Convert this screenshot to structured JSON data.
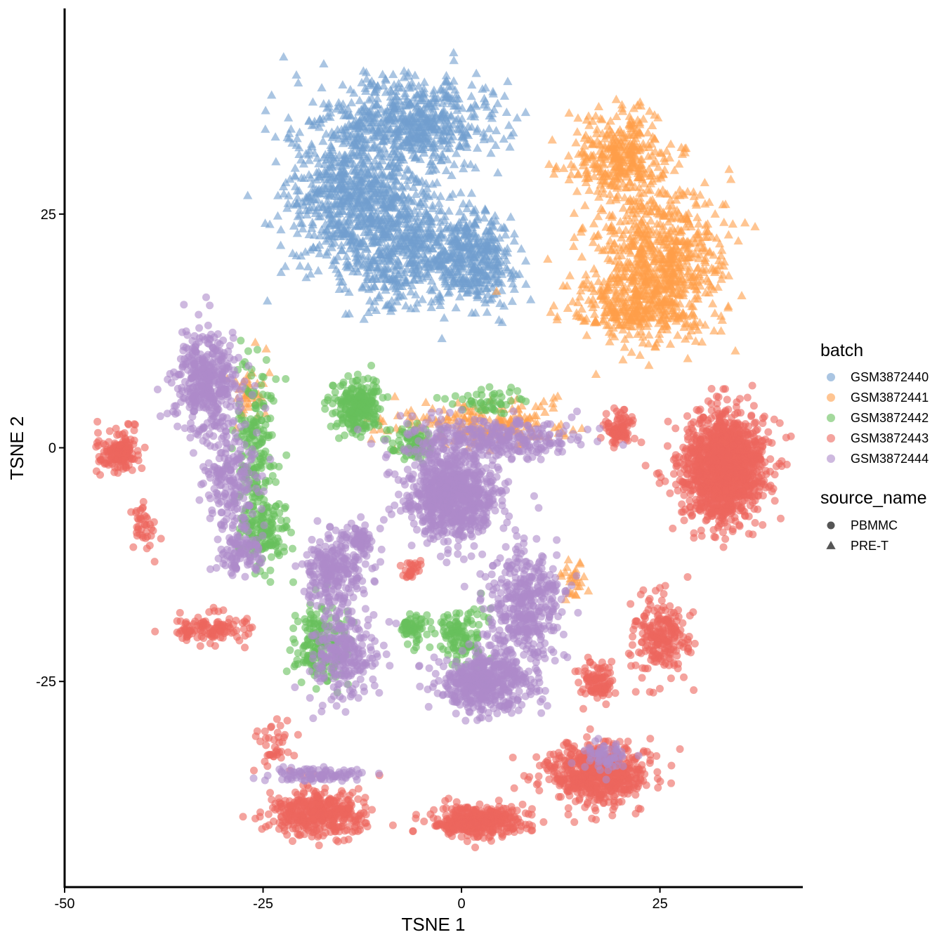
{
  "chart_data": {
    "type": "scatter",
    "title": "",
    "xlabel": "TSNE 1",
    "ylabel": "TSNE 2",
    "xlim": [
      -50,
      43
    ],
    "ylim": [
      -47,
      47
    ],
    "xticks": [
      -50,
      -25,
      0,
      25
    ],
    "xtick_labels": [
      "-50",
      "-25",
      "0",
      "25"
    ],
    "yticks": [
      -25,
      0,
      25
    ],
    "ytick_labels": [
      "-25",
      "0",
      "25"
    ],
    "grid": false,
    "legend_position": "right",
    "legends": {
      "batch": {
        "title": "batch",
        "entries": [
          {
            "label": "GSM3872440",
            "color": "#729ECE"
          },
          {
            "label": "GSM3872441",
            "color": "#FF9E4A"
          },
          {
            "label": "GSM3872442",
            "color": "#67BF5C"
          },
          {
            "label": "GSM3872443",
            "color": "#ED665D"
          },
          {
            "label": "GSM3872444",
            "color": "#AD8BC9"
          }
        ]
      },
      "source_name": {
        "title": "source_name",
        "entries": [
          {
            "label": "PBMMC",
            "shape": "circle"
          },
          {
            "label": "PRE-T",
            "shape": "triangle"
          }
        ]
      }
    },
    "series": [
      {
        "name": "GSM3872440",
        "shape": "triangle",
        "clusters": [
          {
            "cx": -13,
            "cy": 27,
            "sx": 6,
            "sy": 6,
            "n": 900
          },
          {
            "cx": -5,
            "cy": 35,
            "sx": 6,
            "sy": 3,
            "n": 500
          },
          {
            "cx": -5,
            "cy": 21,
            "sx": 6,
            "sy": 3.5,
            "n": 500
          },
          {
            "cx": 2,
            "cy": 20,
            "sx": 3,
            "sy": 3,
            "n": 250
          }
        ]
      },
      {
        "name": "GSM3872441",
        "shape": "triangle",
        "clusters": [
          {
            "cx": 25,
            "cy": 20,
            "sx": 5,
            "sy": 5,
            "n": 700
          },
          {
            "cx": 20,
            "cy": 31,
            "sx": 4,
            "sy": 3,
            "n": 350
          },
          {
            "cx": 21,
            "cy": 15,
            "sx": 5,
            "sy": 2,
            "n": 250
          },
          {
            "cx": 2,
            "cy": 2.5,
            "sx": 7,
            "sy": 1.5,
            "n": 200
          },
          {
            "cx": -27,
            "cy": 6,
            "sx": 1.5,
            "sy": 2,
            "n": 40
          },
          {
            "cx": 14,
            "cy": -14,
            "sx": 1,
            "sy": 1.5,
            "n": 30
          }
        ]
      },
      {
        "name": "GSM3872442",
        "shape": "circle",
        "clusters": [
          {
            "cx": -13,
            "cy": 4.5,
            "sx": 1.8,
            "sy": 1.8,
            "n": 250
          },
          {
            "cx": -26,
            "cy": 0,
            "sx": 1.5,
            "sy": 6,
            "n": 180
          },
          {
            "cx": -25,
            "cy": -9,
            "sx": 2,
            "sy": 2.5,
            "n": 150
          },
          {
            "cx": -18,
            "cy": -21,
            "sx": 2,
            "sy": 2.5,
            "n": 180
          },
          {
            "cx": 0,
            "cy": -20,
            "sx": 2,
            "sy": 2,
            "n": 120
          },
          {
            "cx": -6,
            "cy": -19.5,
            "sx": 1.2,
            "sy": 1.2,
            "n": 60
          },
          {
            "cx": -6,
            "cy": 0.5,
            "sx": 1.5,
            "sy": 1.2,
            "n": 80
          },
          {
            "cx": 3,
            "cy": 5,
            "sx": 3,
            "sy": 0.8,
            "n": 50
          }
        ]
      },
      {
        "name": "GSM3872443",
        "shape": "circle",
        "clusters": [
          {
            "cx": 33,
            "cy": -2,
            "sx": 3.2,
            "sy": 3.5,
            "n": 1400
          },
          {
            "cx": 20,
            "cy": 2,
            "sx": 1.2,
            "sy": 1.2,
            "n": 90
          },
          {
            "cx": 25,
            "cy": -20,
            "sx": 2,
            "sy": 2.5,
            "n": 220
          },
          {
            "cx": 17,
            "cy": -25,
            "sx": 1.5,
            "sy": 1.5,
            "n": 100
          },
          {
            "cx": 17,
            "cy": -35,
            "sx": 4,
            "sy": 2,
            "n": 600
          },
          {
            "cx": 2,
            "cy": -40,
            "sx": 3.5,
            "sy": 1,
            "n": 400
          },
          {
            "cx": -18,
            "cy": -39,
            "sx": 4,
            "sy": 1.5,
            "n": 400
          },
          {
            "cx": -43,
            "cy": -0.5,
            "sx": 1.6,
            "sy": 1.4,
            "n": 150
          },
          {
            "cx": -32,
            "cy": -19.5,
            "sx": 3,
            "sy": 1,
            "n": 120
          },
          {
            "cx": -40,
            "cy": -8,
            "sx": 1,
            "sy": 2,
            "n": 40
          },
          {
            "cx": -6.5,
            "cy": -13,
            "sx": 0.8,
            "sy": 0.8,
            "n": 30
          },
          {
            "cx": -24,
            "cy": -32,
            "sx": 1.5,
            "sy": 1.5,
            "n": 40
          }
        ]
      },
      {
        "name": "GSM3872444",
        "shape": "circle",
        "clusters": [
          {
            "cx": -1,
            "cy": -5,
            "sx": 3.5,
            "sy": 3,
            "n": 800
          },
          {
            "cx": 3,
            "cy": -25,
            "sx": 3.5,
            "sy": 2,
            "n": 500
          },
          {
            "cx": 8,
            "cy": -17,
            "sx": 3,
            "sy": 4,
            "n": 400
          },
          {
            "cx": -32,
            "cy": 7,
            "sx": 2.5,
            "sy": 3.5,
            "n": 400
          },
          {
            "cx": -29,
            "cy": -3,
            "sx": 2,
            "sy": 4,
            "n": 200
          },
          {
            "cx": -16,
            "cy": -13,
            "sx": 2.5,
            "sy": 2.5,
            "n": 250
          },
          {
            "cx": -15,
            "cy": -22,
            "sx": 2.5,
            "sy": 3,
            "n": 250
          },
          {
            "cx": -13,
            "cy": -10,
            "sx": 1,
            "sy": 1,
            "n": 60
          },
          {
            "cx": 3,
            "cy": 1,
            "sx": 7,
            "sy": 1.5,
            "n": 300
          },
          {
            "cx": -28,
            "cy": -11,
            "sx": 2,
            "sy": 1.5,
            "n": 100
          },
          {
            "cx": -18,
            "cy": -35,
            "sx": 4,
            "sy": 0.5,
            "n": 100
          },
          {
            "cx": 18,
            "cy": -33,
            "sx": 2,
            "sy": 1,
            "n": 60
          }
        ]
      }
    ]
  }
}
